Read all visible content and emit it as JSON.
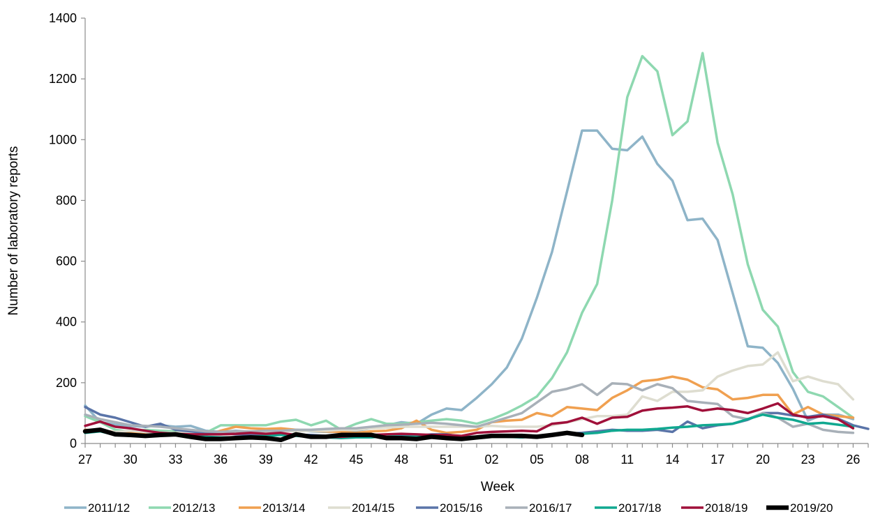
{
  "chart_data": {
    "type": "line",
    "title": "",
    "xlabel": "Week",
    "ylabel": "Number of laboratory reports",
    "ylim": [
      0,
      1400
    ],
    "yticks": [
      0,
      200,
      400,
      600,
      800,
      1000,
      1200,
      1400
    ],
    "categories": [
      "27",
      "28",
      "29",
      "30",
      "31",
      "32",
      "33",
      "34",
      "35",
      "36",
      "37",
      "38",
      "39",
      "40",
      "41",
      "42",
      "43",
      "44",
      "45",
      "46",
      "47",
      "48",
      "49",
      "50",
      "51",
      "52",
      "01",
      "02",
      "03",
      "04",
      "05",
      "06",
      "07",
      "08",
      "09",
      "10",
      "11",
      "12",
      "13",
      "14",
      "15",
      "16",
      "17",
      "18",
      "19",
      "20",
      "21",
      "22",
      "23",
      "24",
      "25",
      "26",
      "27"
    ],
    "xtick_labels": [
      "27",
      "30",
      "33",
      "36",
      "39",
      "42",
      "45",
      "48",
      "51",
      "02",
      "05",
      "08",
      "11",
      "14",
      "17",
      "20",
      "23",
      "26"
    ],
    "grid": false,
    "legend_position": "bottom",
    "series": [
      {
        "name": "2011/12",
        "color": "#8EB4C8",
        "width": 3.5,
        "values": [
          125,
          70,
          62,
          58,
          55,
          60,
          55,
          58,
          42,
          38,
          42,
          38,
          40,
          42,
          45,
          40,
          38,
          40,
          42,
          50,
          60,
          70,
          65,
          95,
          115,
          110,
          150,
          195,
          250,
          345,
          480,
          630,
          830,
          1030,
          1030,
          970,
          965,
          1010,
          920,
          865,
          735,
          740,
          670,
          495,
          320,
          315,
          265,
          180,
          75,
          95,
          95,
          80,
          null
        ]
      },
      {
        "name": "2012/13",
        "color": "#8ED8B0",
        "width": 3.5,
        "values": [
          90,
          70,
          45,
          38,
          45,
          42,
          40,
          38,
          35,
          60,
          60,
          60,
          60,
          72,
          78,
          60,
          75,
          45,
          65,
          80,
          65,
          65,
          70,
          75,
          80,
          75,
          65,
          80,
          100,
          125,
          155,
          215,
          300,
          430,
          525,
          800,
          1140,
          1275,
          1225,
          1015,
          1060,
          1285,
          990,
          820,
          590,
          440,
          385,
          235,
          170,
          155,
          120,
          85,
          null
        ]
      },
      {
        "name": "2013/14",
        "color": "#F0A050",
        "width": 3.5,
        "values": [
          45,
          42,
          38,
          35,
          30,
          28,
          32,
          30,
          28,
          42,
          55,
          50,
          48,
          50,
          45,
          42,
          40,
          38,
          35,
          40,
          42,
          50,
          75,
          45,
          35,
          38,
          45,
          70,
          75,
          78,
          100,
          90,
          120,
          115,
          110,
          150,
          175,
          205,
          210,
          220,
          210,
          185,
          178,
          145,
          150,
          160,
          160,
          95,
          120,
          95,
          90,
          85,
          null
        ]
      },
      {
        "name": "2014/15",
        "color": "#DEDDD0",
        "width": 3.5,
        "values": [
          35,
          40,
          38,
          42,
          38,
          35,
          35,
          38,
          30,
          30,
          32,
          35,
          38,
          42,
          40,
          42,
          42,
          45,
          45,
          50,
          52,
          55,
          55,
          55,
          55,
          55,
          55,
          58,
          55,
          55,
          55,
          60,
          70,
          80,
          90,
          90,
          95,
          155,
          140,
          170,
          170,
          175,
          220,
          240,
          255,
          260,
          300,
          205,
          220,
          205,
          195,
          145,
          null
        ]
      },
      {
        "name": "2015/16",
        "color": "#5A74A8",
        "width": 3.5,
        "values": [
          120,
          95,
          85,
          70,
          55,
          65,
          45,
          40,
          35,
          35,
          30,
          30,
          30,
          30,
          28,
          28,
          25,
          30,
          28,
          28,
          28,
          25,
          25,
          30,
          30,
          22,
          22,
          28,
          25,
          20,
          25,
          30,
          32,
          35,
          40,
          45,
          42,
          42,
          45,
          38,
          72,
          50,
          60,
          65,
          78,
          100,
          100,
          92,
          88,
          95,
          82,
          60,
          48
        ]
      },
      {
        "name": "2016/17",
        "color": "#A8B0B8",
        "width": 3.5,
        "values": [
          95,
          80,
          70,
          60,
          58,
          55,
          50,
          45,
          40,
          38,
          40,
          40,
          42,
          42,
          45,
          45,
          48,
          50,
          50,
          55,
          60,
          62,
          65,
          68,
          65,
          60,
          55,
          70,
          85,
          100,
          135,
          170,
          180,
          195,
          160,
          198,
          195,
          175,
          195,
          182,
          140,
          135,
          130,
          90,
          80,
          100,
          85,
          55,
          65,
          45,
          38,
          35,
          null
        ]
      },
      {
        "name": "2017/18",
        "color": "#10A890",
        "width": 3.5,
        "values": [
          35,
          40,
          28,
          25,
          25,
          30,
          28,
          25,
          22,
          20,
          20,
          22,
          25,
          28,
          25,
          22,
          20,
          18,
          20,
          20,
          25,
          22,
          22,
          25,
          25,
          22,
          20,
          25,
          22,
          20,
          25,
          28,
          32,
          32,
          35,
          42,
          45,
          45,
          48,
          52,
          55,
          60,
          62,
          65,
          80,
          95,
          85,
          78,
          65,
          68,
          62,
          55,
          null
        ]
      },
      {
        "name": "2018/19",
        "color": "#A0103A",
        "width": 3.5,
        "values": [
          58,
          72,
          55,
          50,
          42,
          35,
          32,
          30,
          30,
          30,
          32,
          35,
          32,
          35,
          28,
          22,
          20,
          22,
          25,
          28,
          30,
          32,
          30,
          28,
          28,
          25,
          35,
          38,
          40,
          42,
          40,
          65,
          70,
          85,
          65,
          85,
          88,
          108,
          115,
          118,
          122,
          108,
          115,
          110,
          100,
          115,
          132,
          95,
          85,
          90,
          80,
          50,
          null
        ]
      },
      {
        "name": "2019/20",
        "color": "#000000",
        "width": 6.5,
        "values": [
          40,
          45,
          30,
          28,
          25,
          28,
          30,
          22,
          15,
          15,
          18,
          20,
          18,
          12,
          30,
          22,
          22,
          28,
          28,
          28,
          18,
          18,
          15,
          22,
          18,
          15,
          20,
          25,
          25,
          25,
          22,
          28,
          35,
          28,
          null,
          null,
          null,
          null,
          null,
          null,
          null,
          null,
          null,
          null,
          null,
          null,
          null,
          null,
          null,
          null,
          null,
          null,
          null
        ]
      }
    ]
  }
}
